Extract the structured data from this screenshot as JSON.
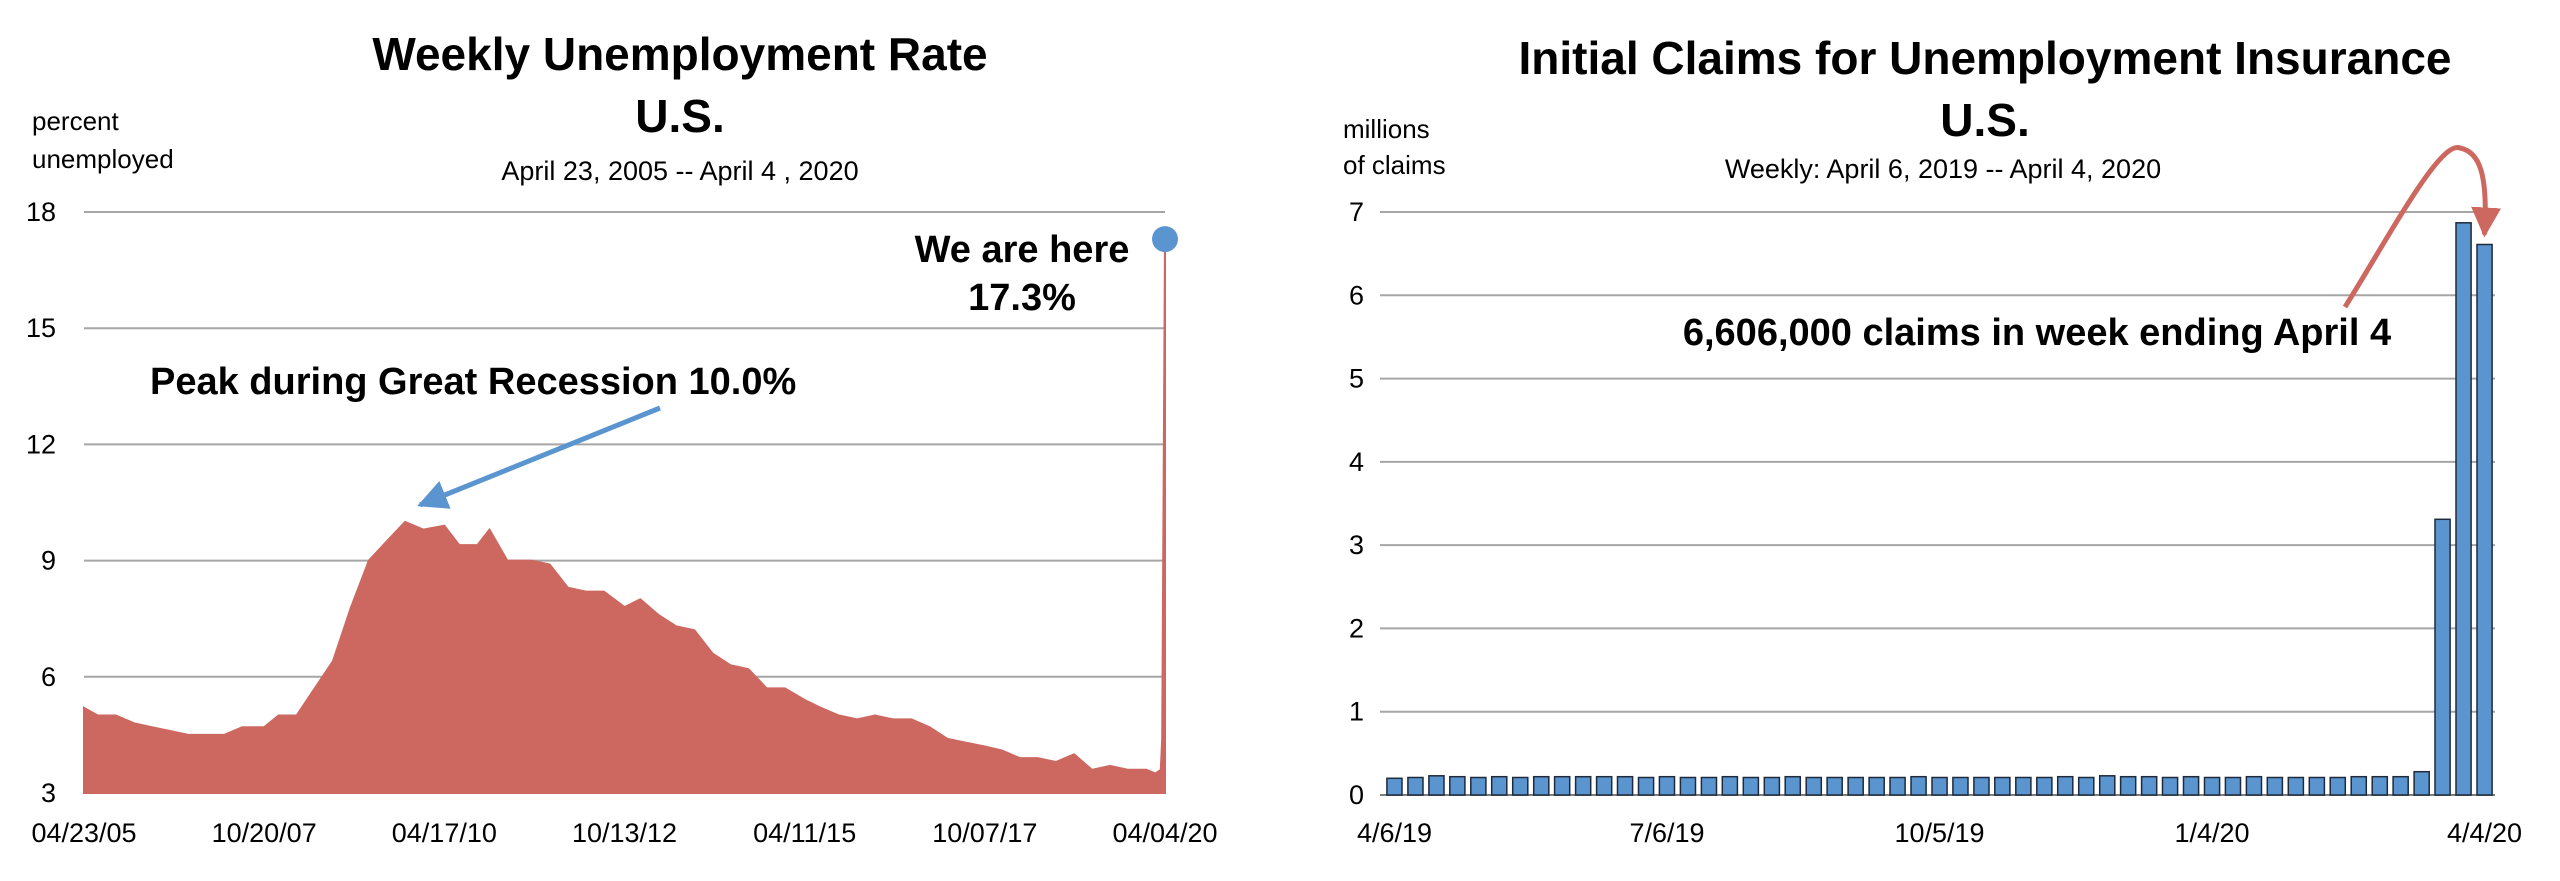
{
  "chart_data": [
    {
      "type": "area",
      "title": "Weekly Unemployment Rate",
      "title_line2": "U.S.",
      "subtitle": "April 23, 2005 -- April 4 , 2020",
      "ylabel_line1": "percent",
      "ylabel_line2": "unemployed",
      "ylim": [
        3,
        18
      ],
      "yticks": [
        3,
        6,
        9,
        12,
        15,
        18
      ],
      "xlim": [
        "2005-04-23",
        "2020-04-04"
      ],
      "xticks": [
        {
          "date": "2005-04-23",
          "label": "04/23/05"
        },
        {
          "date": "2007-10-20",
          "label": "10/20/07"
        },
        {
          "date": "2010-04-17",
          "label": "04/17/10"
        },
        {
          "date": "2012-10-13",
          "label": "10/13/12"
        },
        {
          "date": "2015-04-11",
          "label": "04/11/15"
        },
        {
          "date": "2017-10-07",
          "label": "10/07/17"
        },
        {
          "date": "2020-04-04",
          "label": "04/04/20"
        }
      ],
      "grid": true,
      "color": "#cd6861",
      "series": [
        {
          "points": [
            [
              "2005-04-23",
              5.2
            ],
            [
              "2005-07-01",
              5.0
            ],
            [
              "2005-10-01",
              5.0
            ],
            [
              "2006-01-01",
              4.8
            ],
            [
              "2006-04-01",
              4.7
            ],
            [
              "2006-07-01",
              4.6
            ],
            [
              "2006-10-01",
              4.5
            ],
            [
              "2007-01-01",
              4.5
            ],
            [
              "2007-04-01",
              4.5
            ],
            [
              "2007-07-01",
              4.7
            ],
            [
              "2007-10-20",
              4.7
            ],
            [
              "2008-01-01",
              5.0
            ],
            [
              "2008-04-01",
              5.0
            ],
            [
              "2008-07-01",
              5.7
            ],
            [
              "2008-10-01",
              6.4
            ],
            [
              "2009-01-01",
              7.8
            ],
            [
              "2009-04-01",
              9.0
            ],
            [
              "2009-07-01",
              9.5
            ],
            [
              "2009-10-01",
              10.0
            ],
            [
              "2010-01-01",
              9.8
            ],
            [
              "2010-04-17",
              9.9
            ],
            [
              "2010-07-01",
              9.4
            ],
            [
              "2010-10-01",
              9.4
            ],
            [
              "2010-12-01",
              9.8
            ],
            [
              "2011-03-01",
              9.0
            ],
            [
              "2011-07-01",
              9.0
            ],
            [
              "2011-10-01",
              8.9
            ],
            [
              "2012-01-01",
              8.3
            ],
            [
              "2012-04-01",
              8.2
            ],
            [
              "2012-07-01",
              8.2
            ],
            [
              "2012-10-13",
              7.8
            ],
            [
              "2013-01-01",
              8.0
            ],
            [
              "2013-04-01",
              7.6
            ],
            [
              "2013-07-01",
              7.3
            ],
            [
              "2013-10-01",
              7.2
            ],
            [
              "2014-01-01",
              6.6
            ],
            [
              "2014-04-01",
              6.3
            ],
            [
              "2014-07-01",
              6.2
            ],
            [
              "2014-10-01",
              5.7
            ],
            [
              "2015-01-01",
              5.7
            ],
            [
              "2015-04-11",
              5.4
            ],
            [
              "2015-07-01",
              5.2
            ],
            [
              "2015-10-01",
              5.0
            ],
            [
              "2016-01-01",
              4.9
            ],
            [
              "2016-04-01",
              5.0
            ],
            [
              "2016-07-01",
              4.9
            ],
            [
              "2016-10-01",
              4.9
            ],
            [
              "2017-01-01",
              4.7
            ],
            [
              "2017-04-01",
              4.4
            ],
            [
              "2017-07-01",
              4.3
            ],
            [
              "2017-10-07",
              4.2
            ],
            [
              "2018-01-01",
              4.1
            ],
            [
              "2018-04-01",
              3.9
            ],
            [
              "2018-07-01",
              3.9
            ],
            [
              "2018-10-01",
              3.8
            ],
            [
              "2019-01-01",
              4.0
            ],
            [
              "2019-04-01",
              3.6
            ],
            [
              "2019-07-01",
              3.7
            ],
            [
              "2019-10-01",
              3.6
            ],
            [
              "2020-01-01",
              3.6
            ],
            [
              "2020-02-15",
              3.5
            ],
            [
              "2020-03-14",
              3.6
            ],
            [
              "2020-03-21",
              4.4
            ],
            [
              "2020-04-04",
              17.3
            ]
          ]
        }
      ],
      "annotations": [
        {
          "text": "Peak during Great Recession 10.0%",
          "date": "2009-10-01",
          "value": 10.0,
          "color": "#5b95cf"
        },
        {
          "text": "We are here",
          "text_line2": "17.3%",
          "date": "2020-04-04",
          "value": 17.3,
          "color": "#5b95cf"
        }
      ]
    },
    {
      "type": "bar",
      "title": "Initial Claims for Unemployment Insurance",
      "title_line2": "U.S.",
      "subtitle": "Weekly: April 6, 2019 -- April 4, 2020",
      "ylabel_line1": "millions",
      "ylabel_line2": "of claims",
      "ylim": [
        0,
        7
      ],
      "yticks": [
        0,
        1,
        2,
        3,
        4,
        5,
        6,
        7
      ],
      "xticks": [
        {
          "index": 0,
          "label": "4/6/19"
        },
        {
          "index": 13,
          "label": "7/6/19"
        },
        {
          "index": 26,
          "label": "10/5/19"
        },
        {
          "index": 39,
          "label": "1/4/20"
        },
        {
          "index": 52,
          "label": "4/4/20"
        }
      ],
      "grid": true,
      "color": "#5b95cf",
      "values": [
        0.2,
        0.21,
        0.23,
        0.22,
        0.21,
        0.22,
        0.21,
        0.22,
        0.22,
        0.22,
        0.22,
        0.22,
        0.21,
        0.22,
        0.21,
        0.21,
        0.22,
        0.21,
        0.21,
        0.22,
        0.21,
        0.21,
        0.21,
        0.21,
        0.21,
        0.22,
        0.21,
        0.21,
        0.21,
        0.21,
        0.21,
        0.21,
        0.22,
        0.21,
        0.23,
        0.22,
        0.22,
        0.21,
        0.22,
        0.21,
        0.21,
        0.22,
        0.21,
        0.21,
        0.21,
        0.21,
        0.22,
        0.22,
        0.22,
        0.28,
        3.31,
        6.87,
        6.61
      ],
      "annotation": {
        "text": "6,606,000 claims in week ending April 4",
        "index": 52,
        "color": "#cd6861"
      }
    }
  ]
}
